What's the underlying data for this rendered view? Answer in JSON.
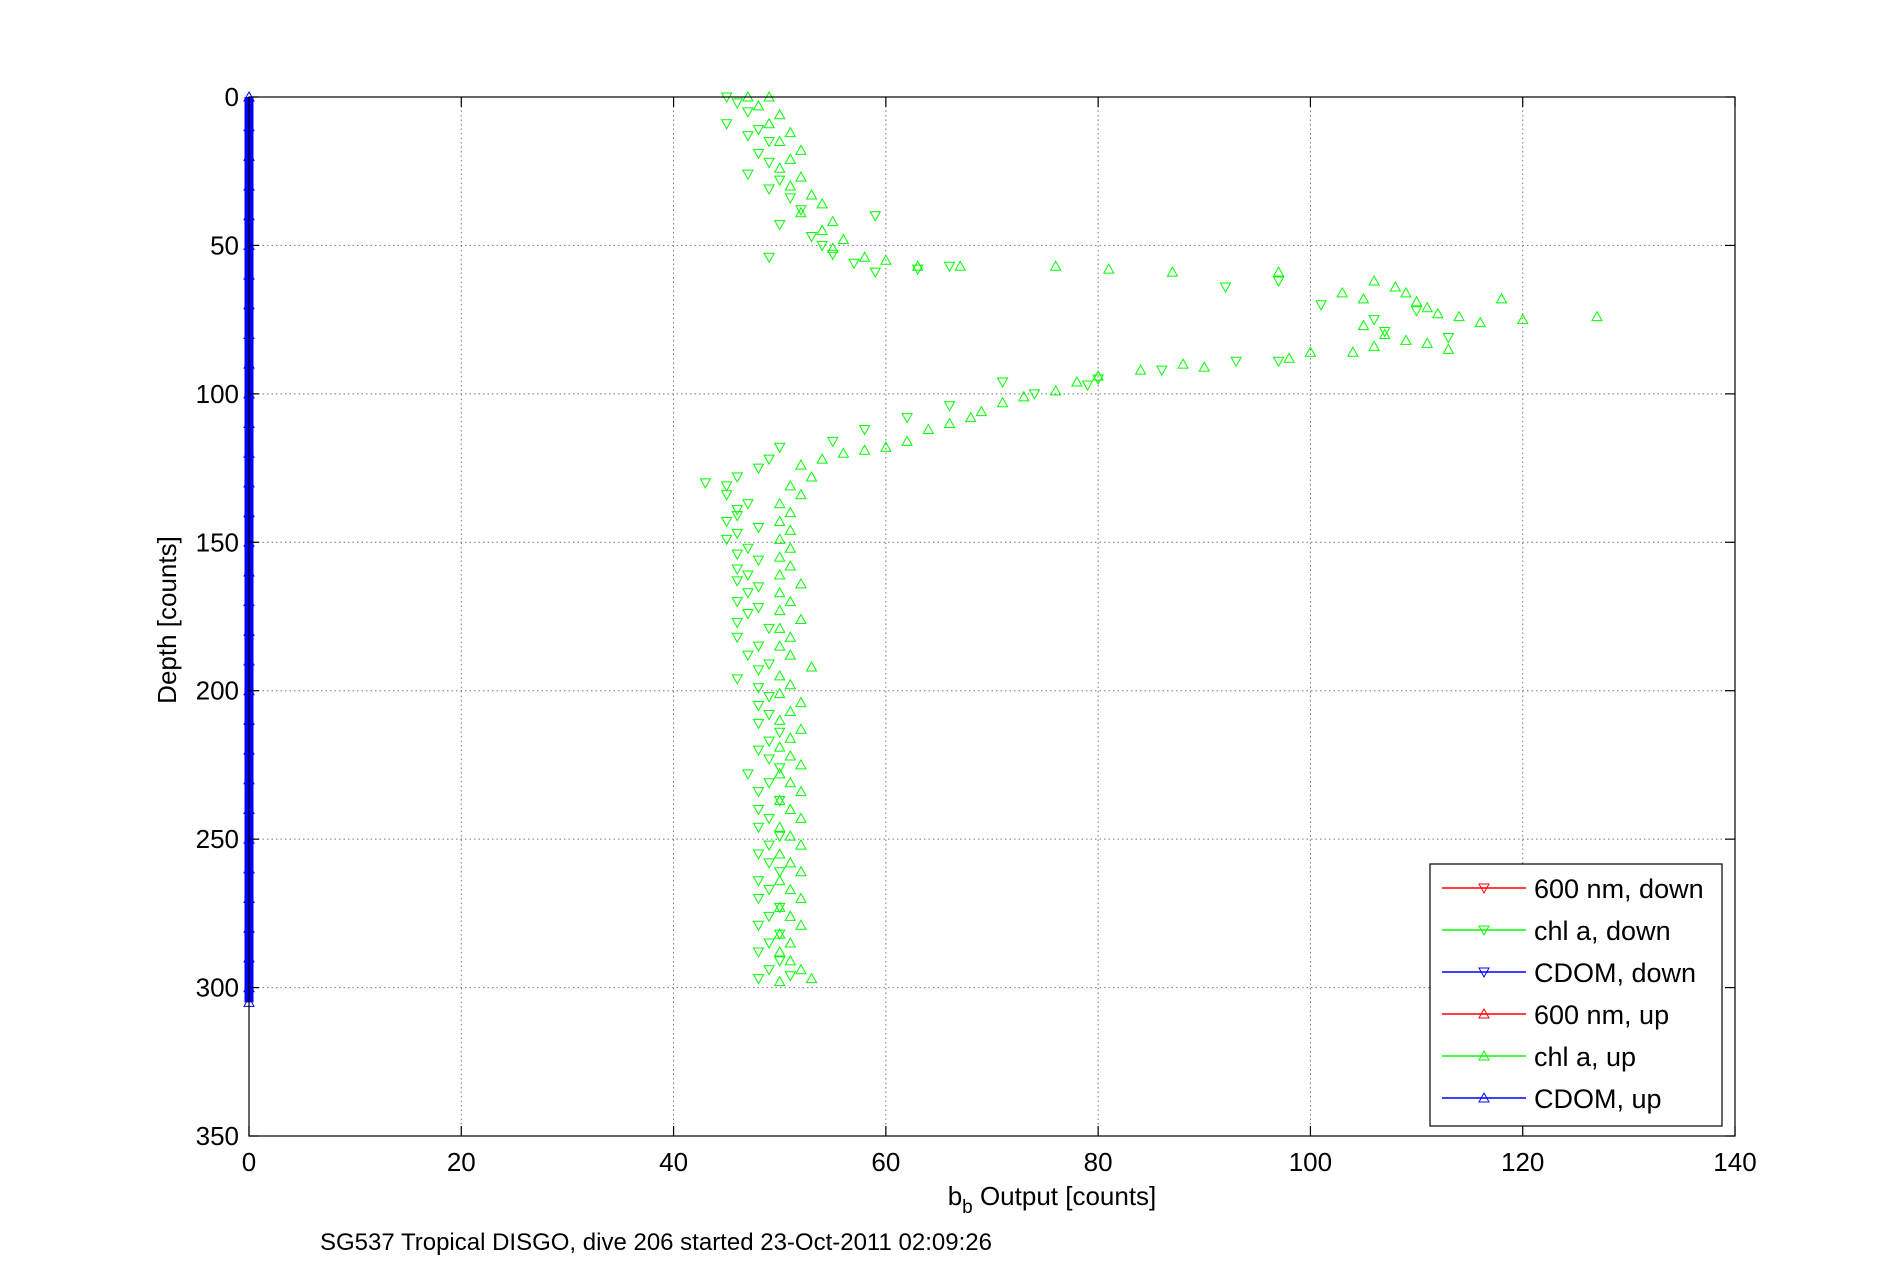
{
  "chart_data": {
    "type": "scatter",
    "title": "",
    "xlabel_base": "b",
    "xlabel_sub": "b",
    "xlabel_rest": " Output [counts]",
    "ylabel": "Depth [counts]",
    "caption": "SG537 Tropical DISGO, dive 206 started 23-Oct-2011 02:09:26",
    "xlim": [
      0,
      140
    ],
    "ylim": [
      0,
      350
    ],
    "y_reversed": true,
    "grid": true,
    "x_ticks": [
      "0",
      "20",
      "40",
      "60",
      "80",
      "100",
      "120",
      "140"
    ],
    "y_ticks": [
      "0",
      "50",
      "100",
      "150",
      "200",
      "250",
      "300",
      "350"
    ],
    "legend_position": "bottom-right",
    "series": [
      {
        "name": "600 nm, down",
        "color": "#ff0000",
        "marker": "triangle-down",
        "points": []
      },
      {
        "name": "chl a, down",
        "color": "#00ff00",
        "marker": "triangle-down",
        "points": [
          [
            45,
            0
          ],
          [
            46,
            2
          ],
          [
            47,
            5
          ],
          [
            45,
            9
          ],
          [
            48,
            11
          ],
          [
            47,
            13
          ],
          [
            49,
            15
          ],
          [
            48,
            19
          ],
          [
            49,
            22
          ],
          [
            47,
            26
          ],
          [
            50,
            28
          ],
          [
            49,
            31
          ],
          [
            51,
            34
          ],
          [
            52,
            38
          ],
          [
            50,
            43
          ],
          [
            59,
            40
          ],
          [
            53,
            47
          ],
          [
            54,
            50
          ],
          [
            49,
            54
          ],
          [
            55,
            53
          ],
          [
            57,
            56
          ],
          [
            59,
            59
          ],
          [
            63,
            58
          ],
          [
            66,
            57
          ],
          [
            92,
            64
          ],
          [
            97,
            62
          ],
          [
            101,
            70
          ],
          [
            106,
            75
          ],
          [
            107,
            79
          ],
          [
            110,
            72
          ],
          [
            113,
            81
          ],
          [
            97,
            89
          ],
          [
            93,
            89
          ],
          [
            86,
            92
          ],
          [
            80,
            95
          ],
          [
            79,
            97
          ],
          [
            74,
            100
          ],
          [
            71,
            96
          ],
          [
            66,
            104
          ],
          [
            62,
            108
          ],
          [
            58,
            112
          ],
          [
            55,
            116
          ],
          [
            50,
            118
          ],
          [
            49,
            122
          ],
          [
            48,
            125
          ],
          [
            46,
            128
          ],
          [
            45,
            131
          ],
          [
            43,
            130
          ],
          [
            45,
            134
          ],
          [
            47,
            137
          ],
          [
            46,
            139
          ],
          [
            46,
            141
          ],
          [
            45,
            143
          ],
          [
            48,
            145
          ],
          [
            46,
            147
          ],
          [
            45,
            149
          ],
          [
            47,
            152
          ],
          [
            46,
            154
          ],
          [
            48,
            156
          ],
          [
            46,
            159
          ],
          [
            47,
            161
          ],
          [
            46,
            163
          ],
          [
            48,
            165
          ],
          [
            47,
            167
          ],
          [
            46,
            170
          ],
          [
            48,
            172
          ],
          [
            47,
            174
          ],
          [
            46,
            177
          ],
          [
            49,
            179
          ],
          [
            46,
            182
          ],
          [
            48,
            185
          ],
          [
            47,
            188
          ],
          [
            49,
            191
          ],
          [
            48,
            193
          ],
          [
            46,
            196
          ],
          [
            48,
            199
          ],
          [
            49,
            202
          ],
          [
            48,
            205
          ],
          [
            49,
            208
          ],
          [
            48,
            211
          ],
          [
            50,
            214
          ],
          [
            49,
            217
          ],
          [
            48,
            220
          ],
          [
            49,
            223
          ],
          [
            50,
            226
          ],
          [
            47,
            228
          ],
          [
            49,
            231
          ],
          [
            48,
            234
          ],
          [
            50,
            237
          ],
          [
            48,
            240
          ],
          [
            49,
            243
          ],
          [
            48,
            246
          ],
          [
            50,
            249
          ],
          [
            49,
            252
          ],
          [
            48,
            255
          ],
          [
            49,
            258
          ],
          [
            50,
            261
          ],
          [
            48,
            264
          ],
          [
            49,
            267
          ],
          [
            48,
            270
          ],
          [
            50,
            273
          ],
          [
            49,
            276
          ],
          [
            48,
            279
          ],
          [
            50,
            282
          ],
          [
            49,
            285
          ],
          [
            48,
            288
          ],
          [
            50,
            291
          ],
          [
            49,
            294
          ],
          [
            48,
            297
          ],
          [
            51,
            296
          ]
        ]
      },
      {
        "name": "CDOM, down",
        "color": "#0000ff",
        "marker": "triangle-down",
        "points": []
      },
      {
        "name": "600 nm, up",
        "color": "#ff0000",
        "marker": "triangle-up",
        "points": []
      },
      {
        "name": "chl a, up",
        "color": "#00ff00",
        "marker": "triangle-up",
        "points": [
          [
            47,
            0
          ],
          [
            49,
            0
          ],
          [
            48,
            3
          ],
          [
            50,
            6
          ],
          [
            49,
            9
          ],
          [
            51,
            12
          ],
          [
            50,
            15
          ],
          [
            52,
            18
          ],
          [
            51,
            21
          ],
          [
            50,
            24
          ],
          [
            52,
            27
          ],
          [
            51,
            30
          ],
          [
            53,
            33
          ],
          [
            54,
            36
          ],
          [
            52,
            39
          ],
          [
            55,
            42
          ],
          [
            54,
            45
          ],
          [
            56,
            48
          ],
          [
            55,
            51
          ],
          [
            58,
            54
          ],
          [
            60,
            55
          ],
          [
            63,
            57
          ],
          [
            67,
            57
          ],
          [
            76,
            57
          ],
          [
            81,
            58
          ],
          [
            87,
            59
          ],
          [
            97,
            59
          ],
          [
            103,
            66
          ],
          [
            105,
            68
          ],
          [
            106,
            62
          ],
          [
            108,
            64
          ],
          [
            109,
            66
          ],
          [
            110,
            69
          ],
          [
            111,
            71
          ],
          [
            112,
            73
          ],
          [
            114,
            74
          ],
          [
            116,
            76
          ],
          [
            118,
            68
          ],
          [
            120,
            75
          ],
          [
            127,
            74
          ],
          [
            105,
            77
          ],
          [
            107,
            80
          ],
          [
            109,
            82
          ],
          [
            111,
            83
          ],
          [
            113,
            85
          ],
          [
            106,
            84
          ],
          [
            104,
            86
          ],
          [
            100,
            86
          ],
          [
            98,
            88
          ],
          [
            90,
            91
          ],
          [
            88,
            90
          ],
          [
            84,
            92
          ],
          [
            80,
            94
          ],
          [
            78,
            96
          ],
          [
            76,
            99
          ],
          [
            73,
            101
          ],
          [
            71,
            103
          ],
          [
            69,
            106
          ],
          [
            68,
            108
          ],
          [
            66,
            110
          ],
          [
            64,
            112
          ],
          [
            62,
            116
          ],
          [
            60,
            118
          ],
          [
            58,
            119
          ],
          [
            56,
            120
          ],
          [
            54,
            122
          ],
          [
            52,
            124
          ],
          [
            53,
            128
          ],
          [
            51,
            131
          ],
          [
            52,
            134
          ],
          [
            50,
            137
          ],
          [
            51,
            140
          ],
          [
            50,
            143
          ],
          [
            51,
            146
          ],
          [
            50,
            149
          ],
          [
            51,
            152
          ],
          [
            50,
            155
          ],
          [
            51,
            158
          ],
          [
            50,
            161
          ],
          [
            52,
            164
          ],
          [
            50,
            167
          ],
          [
            51,
            170
          ],
          [
            50,
            173
          ],
          [
            52,
            176
          ],
          [
            50,
            179
          ],
          [
            51,
            182
          ],
          [
            50,
            185
          ],
          [
            51,
            188
          ],
          [
            53,
            192
          ],
          [
            50,
            195
          ],
          [
            51,
            198
          ],
          [
            50,
            201
          ],
          [
            52,
            204
          ],
          [
            51,
            207
          ],
          [
            50,
            210
          ],
          [
            52,
            213
          ],
          [
            51,
            216
          ],
          [
            50,
            219
          ],
          [
            51,
            222
          ],
          [
            52,
            225
          ],
          [
            50,
            228
          ],
          [
            51,
            231
          ],
          [
            52,
            234
          ],
          [
            50,
            237
          ],
          [
            51,
            240
          ],
          [
            52,
            243
          ],
          [
            50,
            246
          ],
          [
            51,
            249
          ],
          [
            52,
            252
          ],
          [
            50,
            255
          ],
          [
            51,
            258
          ],
          [
            52,
            261
          ],
          [
            50,
            264
          ],
          [
            51,
            267
          ],
          [
            52,
            270
          ],
          [
            50,
            273
          ],
          [
            51,
            276
          ],
          [
            52,
            279
          ],
          [
            50,
            282
          ],
          [
            51,
            285
          ],
          [
            50,
            288
          ],
          [
            51,
            291
          ],
          [
            52,
            294
          ],
          [
            53,
            297
          ],
          [
            50,
            298
          ]
        ]
      },
      {
        "name": "CDOM, up",
        "color": "#0000ff",
        "marker": "triangle-up",
        "points": [
          [
            0,
            0
          ],
          [
            0,
            10
          ],
          [
            0,
            20
          ],
          [
            0,
            30
          ],
          [
            0,
            40
          ],
          [
            0,
            50
          ],
          [
            0,
            60
          ],
          [
            0,
            70
          ],
          [
            0,
            80
          ],
          [
            0,
            90
          ],
          [
            0,
            100
          ],
          [
            0,
            110
          ],
          [
            0,
            120
          ],
          [
            0,
            130
          ],
          [
            0,
            140
          ],
          [
            0,
            150
          ],
          [
            0,
            160
          ],
          [
            0,
            170
          ],
          [
            0,
            180
          ],
          [
            0,
            190
          ],
          [
            0,
            200
          ],
          [
            0,
            210
          ],
          [
            0,
            220
          ],
          [
            0,
            230
          ],
          [
            0,
            240
          ],
          [
            0,
            250
          ],
          [
            0,
            260
          ],
          [
            0,
            270
          ],
          [
            0,
            280
          ],
          [
            0,
            290
          ],
          [
            0,
            300
          ],
          [
            0,
            305
          ]
        ]
      }
    ]
  }
}
